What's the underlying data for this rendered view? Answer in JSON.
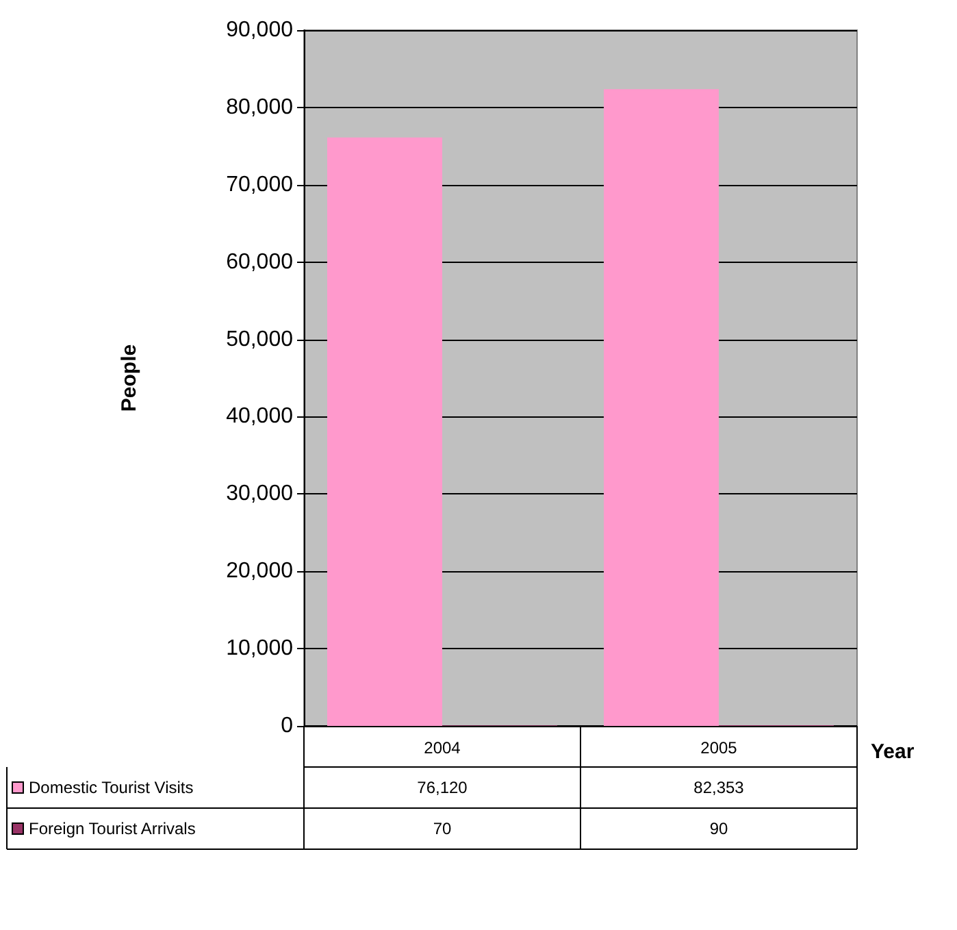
{
  "chart_data": {
    "type": "bar",
    "xlabel": "Year",
    "ylabel": "People",
    "categories": [
      "2004",
      "2005"
    ],
    "series": [
      {
        "name": "Domestic Tourist Visits",
        "color": "#ff99cc",
        "values": [
          76120,
          82353
        ],
        "value_labels": [
          "76,120",
          "82,353"
        ]
      },
      {
        "name": "Foreign Tourist Arrivals",
        "color": "#993366",
        "values": [
          70,
          90
        ],
        "value_labels": [
          "70",
          "90"
        ]
      }
    ],
    "ylim": [
      0,
      90000
    ],
    "yticks": [
      0,
      {
        "value": 10000,
        "label": "10,000"
      },
      {
        "value": 20000,
        "label": "20,000"
      },
      {
        "value": 30000,
        "label": "30,000"
      },
      {
        "value": 40000,
        "label": "40,000"
      },
      {
        "value": 50000,
        "label": "50,000"
      },
      {
        "value": 60000,
        "label": "60,000"
      },
      {
        "value": 70000,
        "label": "70,000"
      },
      {
        "value": 80000,
        "label": "80,000"
      },
      {
        "value": 90000,
        "label": "90,000"
      }
    ],
    "grid": "y",
    "legend": "bottom"
  }
}
